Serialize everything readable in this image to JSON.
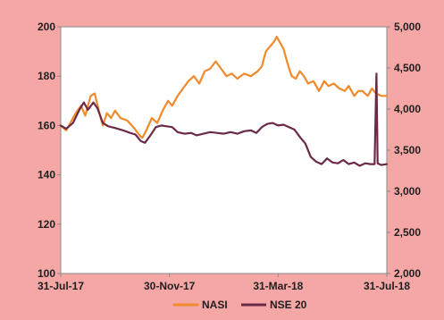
{
  "chart_data": {
    "type": "line",
    "title": "",
    "xlabel": "",
    "ylabel": "",
    "colors": {
      "background": "#f4a7a4",
      "plot_area": "#ffffff",
      "axis": "#8a8a8a"
    },
    "x_ticks": [
      "31-Jul-17",
      "30-Nov-17",
      "31-Mar-18",
      "31-Jul-18"
    ],
    "y_left": {
      "min": 100,
      "max": 200,
      "ticks": [
        "100",
        "120",
        "140",
        "160",
        "180",
        "200"
      ]
    },
    "y_right": {
      "min": 2000,
      "max": 5000,
      "ticks": [
        "2,000",
        "2,500",
        "3,000",
        "3,500",
        "4,000",
        "4,500",
        "5,000"
      ]
    },
    "legend_position": "bottom",
    "x_unit": "months since 31-Jul-17",
    "series": [
      {
        "name": "NASI",
        "axis": "left",
        "color": "#f08a2c",
        "points": [
          [
            0.0,
            160
          ],
          [
            0.2,
            158
          ],
          [
            0.4,
            162
          ],
          [
            0.55,
            165
          ],
          [
            0.75,
            168
          ],
          [
            0.9,
            164
          ],
          [
            1.1,
            172
          ],
          [
            1.25,
            173
          ],
          [
            1.4,
            166
          ],
          [
            1.55,
            160
          ],
          [
            1.7,
            165
          ],
          [
            1.85,
            163
          ],
          [
            2.0,
            166
          ],
          [
            2.2,
            163
          ],
          [
            2.45,
            162
          ],
          [
            2.7,
            159
          ],
          [
            2.9,
            156
          ],
          [
            3.0,
            155
          ],
          [
            3.15,
            158
          ],
          [
            3.35,
            163
          ],
          [
            3.55,
            161
          ],
          [
            3.75,
            166
          ],
          [
            3.95,
            170
          ],
          [
            4.1,
            168
          ],
          [
            4.3,
            172
          ],
          [
            4.5,
            175
          ],
          [
            4.7,
            178
          ],
          [
            4.9,
            180
          ],
          [
            5.1,
            177
          ],
          [
            5.3,
            182
          ],
          [
            5.5,
            183
          ],
          [
            5.7,
            186
          ],
          [
            5.9,
            183
          ],
          [
            6.1,
            180
          ],
          [
            6.3,
            181
          ],
          [
            6.5,
            179
          ],
          [
            6.75,
            181
          ],
          [
            7.0,
            180
          ],
          [
            7.25,
            182
          ],
          [
            7.4,
            184
          ],
          [
            7.55,
            190
          ],
          [
            7.7,
            192
          ],
          [
            7.85,
            194
          ],
          [
            7.95,
            196
          ],
          [
            8.05,
            194
          ],
          [
            8.2,
            191
          ],
          [
            8.35,
            185
          ],
          [
            8.5,
            180
          ],
          [
            8.65,
            179
          ],
          [
            8.8,
            182
          ],
          [
            8.95,
            180
          ],
          [
            9.1,
            177
          ],
          [
            9.3,
            178
          ],
          [
            9.5,
            174
          ],
          [
            9.7,
            178
          ],
          [
            9.85,
            176
          ],
          [
            10.05,
            177
          ],
          [
            10.25,
            175
          ],
          [
            10.45,
            174
          ],
          [
            10.6,
            176
          ],
          [
            10.8,
            172
          ],
          [
            10.95,
            174
          ],
          [
            11.1,
            174
          ],
          [
            11.3,
            172
          ],
          [
            11.45,
            175
          ],
          [
            11.6,
            173
          ],
          [
            11.8,
            172
          ],
          [
            12.0,
            172
          ]
        ]
      },
      {
        "name": "NSE 20",
        "axis": "right",
        "color": "#6a2a48",
        "points": [
          [
            0.0,
            3800
          ],
          [
            0.2,
            3760
          ],
          [
            0.45,
            3830
          ],
          [
            0.7,
            4000
          ],
          [
            0.85,
            4080
          ],
          [
            1.0,
            3990
          ],
          [
            1.2,
            4080
          ],
          [
            1.35,
            4010
          ],
          [
            1.55,
            3830
          ],
          [
            1.75,
            3790
          ],
          [
            2.0,
            3770
          ],
          [
            2.3,
            3740
          ],
          [
            2.55,
            3710
          ],
          [
            2.75,
            3690
          ],
          [
            2.95,
            3610
          ],
          [
            3.1,
            3590
          ],
          [
            3.3,
            3680
          ],
          [
            3.5,
            3780
          ],
          [
            3.7,
            3800
          ],
          [
            3.9,
            3790
          ],
          [
            4.1,
            3780
          ],
          [
            4.3,
            3720
          ],
          [
            4.55,
            3700
          ],
          [
            4.8,
            3710
          ],
          [
            5.0,
            3680
          ],
          [
            5.25,
            3700
          ],
          [
            5.5,
            3720
          ],
          [
            5.75,
            3710
          ],
          [
            6.0,
            3700
          ],
          [
            6.25,
            3720
          ],
          [
            6.5,
            3700
          ],
          [
            6.75,
            3730
          ],
          [
            7.0,
            3740
          ],
          [
            7.2,
            3710
          ],
          [
            7.4,
            3780
          ],
          [
            7.6,
            3820
          ],
          [
            7.8,
            3830
          ],
          [
            8.0,
            3800
          ],
          [
            8.2,
            3810
          ],
          [
            8.4,
            3780
          ],
          [
            8.6,
            3750
          ],
          [
            8.8,
            3660
          ],
          [
            9.0,
            3580
          ],
          [
            9.2,
            3420
          ],
          [
            9.4,
            3360
          ],
          [
            9.6,
            3330
          ],
          [
            9.8,
            3400
          ],
          [
            10.0,
            3350
          ],
          [
            10.2,
            3340
          ],
          [
            10.4,
            3380
          ],
          [
            10.6,
            3330
          ],
          [
            10.8,
            3350
          ],
          [
            11.0,
            3310
          ],
          [
            11.2,
            3340
          ],
          [
            11.4,
            3330
          ],
          [
            11.55,
            3330
          ],
          [
            11.62,
            4430
          ],
          [
            11.66,
            3340
          ],
          [
            11.8,
            3320
          ],
          [
            12.0,
            3330
          ]
        ]
      }
    ]
  }
}
